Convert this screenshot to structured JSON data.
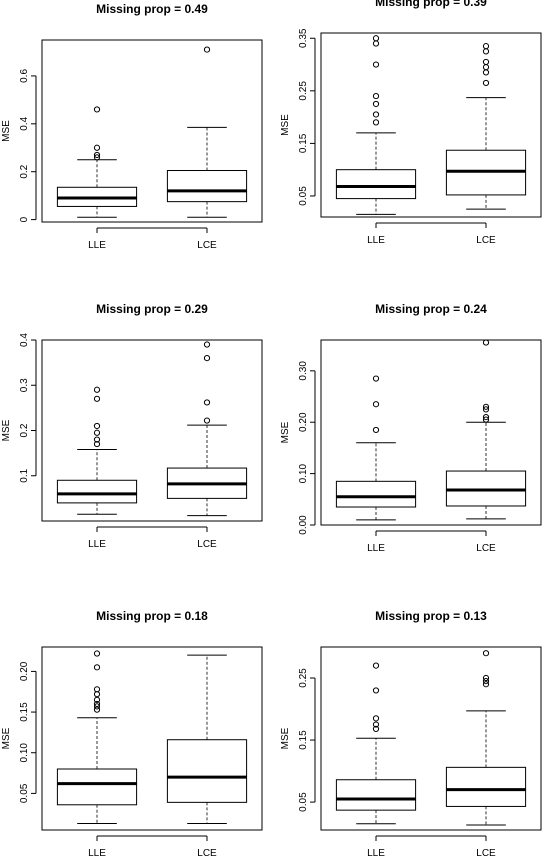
{
  "chart_data": [
    {
      "type": "box",
      "title": "Missing prop = 0.49",
      "ylabel": "MSE",
      "categories": [
        "LLE",
        "LCE"
      ],
      "ylim": [
        -0.01,
        0.75
      ],
      "yticks": [
        0,
        0.2,
        0.4,
        0.6
      ],
      "ytick_labels": [
        "0",
        "0.2",
        "0.4",
        "0.6"
      ],
      "boxes": [
        {
          "name": "LLE",
          "whisker_low": 0.01,
          "q1": 0.055,
          "median": 0.09,
          "q3": 0.135,
          "whisker_high": 0.25,
          "outliers": [
            0.26,
            0.27,
            0.3,
            0.46
          ]
        },
        {
          "name": "LCE",
          "whisker_low": 0.01,
          "q1": 0.075,
          "median": 0.12,
          "q3": 0.205,
          "whisker_high": 0.385,
          "outliers": [
            0.71
          ]
        }
      ]
    },
    {
      "type": "box",
      "title": "Missing prop = 0.39",
      "ylabel": "MSE",
      "categories": [
        "LLE",
        "LCE"
      ],
      "ylim": [
        0.01,
        0.36
      ],
      "yticks": [
        0.05,
        0.15,
        0.25,
        0.35
      ],
      "ytick_labels": [
        "0.05",
        "0.15",
        "0.25",
        "0.35"
      ],
      "boxes": [
        {
          "name": "LLE",
          "whisker_low": 0.015,
          "q1": 0.045,
          "median": 0.068,
          "q3": 0.1,
          "whisker_high": 0.17,
          "outliers": [
            0.19,
            0.205,
            0.225,
            0.24,
            0.3,
            0.34,
            0.35
          ]
        },
        {
          "name": "LCE",
          "whisker_low": 0.025,
          "q1": 0.052,
          "median": 0.097,
          "q3": 0.137,
          "whisker_high": 0.237,
          "outliers": [
            0.265,
            0.285,
            0.295,
            0.305,
            0.325,
            0.335
          ]
        }
      ]
    },
    {
      "type": "box",
      "title": "Missing prop = 0.29",
      "ylabel": "MSE",
      "categories": [
        "LLE",
        "LCE"
      ],
      "ylim": [
        0.0,
        0.4
      ],
      "yticks": [
        0.1,
        0.2,
        0.3,
        0.4
      ],
      "ytick_labels": [
        "0.1",
        "0.2",
        "0.3",
        "0.4"
      ],
      "boxes": [
        {
          "name": "LLE",
          "whisker_low": 0.015,
          "q1": 0.04,
          "median": 0.06,
          "q3": 0.09,
          "whisker_high": 0.158,
          "outliers": [
            0.17,
            0.18,
            0.195,
            0.21,
            0.27,
            0.29
          ]
        },
        {
          "name": "LCE",
          "whisker_low": 0.012,
          "q1": 0.05,
          "median": 0.082,
          "q3": 0.117,
          "whisker_high": 0.212,
          "outliers": [
            0.222,
            0.262,
            0.36,
            0.39
          ]
        }
      ]
    },
    {
      "type": "box",
      "title": "Missing prop = 0.24",
      "ylabel": "MSE",
      "categories": [
        "LLE",
        "LCE"
      ],
      "ylim": [
        0.0,
        0.36
      ],
      "yticks": [
        0.0,
        0.1,
        0.2,
        0.3
      ],
      "ytick_labels": [
        "0.00",
        "0.10",
        "0.20",
        "0.30"
      ],
      "boxes": [
        {
          "name": "LLE",
          "whisker_low": 0.01,
          "q1": 0.035,
          "median": 0.055,
          "q3": 0.085,
          "whisker_high": 0.16,
          "outliers": [
            0.185,
            0.235,
            0.285
          ]
        },
        {
          "name": "LCE",
          "whisker_low": 0.012,
          "q1": 0.037,
          "median": 0.068,
          "q3": 0.105,
          "whisker_high": 0.2,
          "outliers": [
            0.205,
            0.21,
            0.225,
            0.23,
            0.355
          ]
        }
      ]
    },
    {
      "type": "box",
      "title": "Missing prop = 0.18",
      "ylabel": "MSE",
      "categories": [
        "LLE",
        "LCE"
      ],
      "ylim": [
        0.005,
        0.23
      ],
      "yticks": [
        0.05,
        0.1,
        0.15,
        0.2
      ],
      "ytick_labels": [
        "0.05",
        "0.10",
        "0.15",
        "0.20"
      ],
      "boxes": [
        {
          "name": "LLE",
          "whisker_low": 0.013,
          "q1": 0.036,
          "median": 0.062,
          "q3": 0.08,
          "whisker_high": 0.143,
          "outliers": [
            0.153,
            0.157,
            0.16,
            0.165,
            0.172,
            0.178,
            0.205,
            0.222
          ]
        },
        {
          "name": "LCE",
          "whisker_low": 0.013,
          "q1": 0.039,
          "median": 0.07,
          "q3": 0.116,
          "whisker_high": 0.22,
          "outliers": []
        }
      ]
    },
    {
      "type": "box",
      "title": "Missing prop = 0.13",
      "ylabel": "MSE",
      "categories": [
        "LLE",
        "LCE"
      ],
      "ylim": [
        0.005,
        0.3
      ],
      "yticks": [
        0.05,
        0.15,
        0.25
      ],
      "ytick_labels": [
        "0.05",
        "0.15",
        "0.25"
      ],
      "boxes": [
        {
          "name": "LLE",
          "whisker_low": 0.015,
          "q1": 0.037,
          "median": 0.055,
          "q3": 0.086,
          "whisker_high": 0.153,
          "outliers": [
            0.168,
            0.175,
            0.185,
            0.23,
            0.27
          ]
        },
        {
          "name": "LCE",
          "whisker_low": 0.013,
          "q1": 0.043,
          "median": 0.07,
          "q3": 0.106,
          "whisker_high": 0.197,
          "outliers": [
            0.24,
            0.245,
            0.25,
            0.29
          ]
        }
      ]
    }
  ]
}
